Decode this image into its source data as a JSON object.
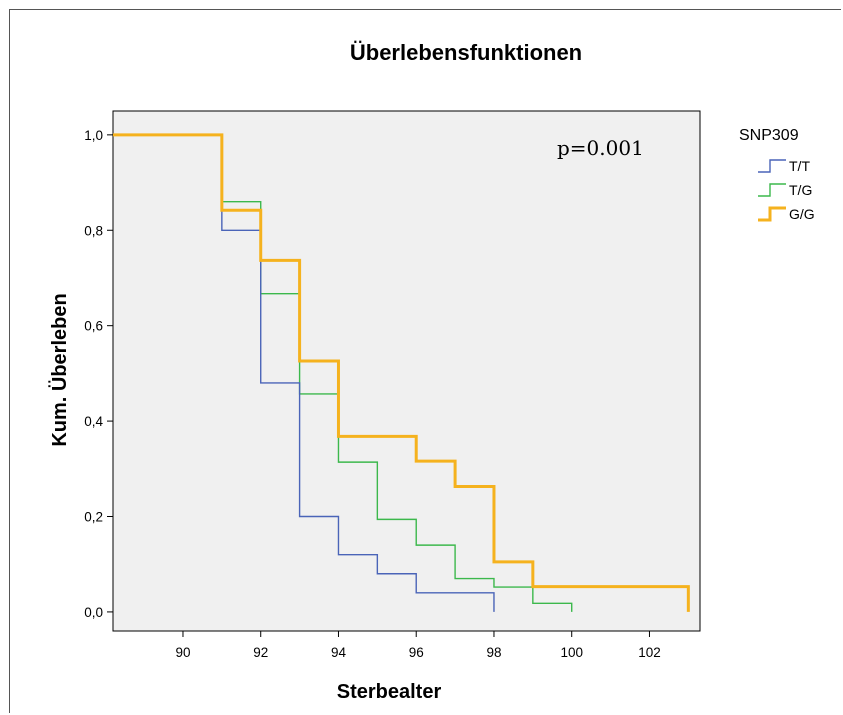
{
  "chart_data": {
    "type": "line",
    "subtype": "step",
    "title": "Überlebensfunktionen",
    "xlabel": "Sterbealter",
    "ylabel": "Kum. Überleben",
    "xlim": [
      88.2,
      103.3
    ],
    "ylim": [
      -0.04,
      1.05
    ],
    "xticks": [
      90,
      92,
      94,
      96,
      98,
      100,
      102
    ],
    "xtick_labels": [
      "90",
      "92",
      "94",
      "96",
      "98",
      "100",
      "102"
    ],
    "yticks": [
      0.0,
      0.2,
      0.4,
      0.6,
      0.8,
      1.0
    ],
    "ytick_labels": [
      "0,0",
      "0,2",
      "0,4",
      "0,6",
      "0,8",
      "1,0"
    ],
    "grid": false,
    "legend": {
      "title": "SNP309",
      "placement": "right"
    },
    "annotation": "p=0.001",
    "colors": {
      "plot_background": "#f0f0f0"
    },
    "series": [
      {
        "name": "T/T",
        "color": "#4a64b8",
        "stroke": 1.4,
        "points": [
          [
            88.2,
            1.0
          ],
          [
            91,
            0.8
          ],
          [
            92,
            0.48
          ],
          [
            93,
            0.2
          ],
          [
            94,
            0.12
          ],
          [
            95,
            0.08
          ],
          [
            96,
            0.04
          ],
          [
            98,
            0.0
          ]
        ]
      },
      {
        "name": "T/G",
        "color": "#3cb84c",
        "stroke": 1.4,
        "points": [
          [
            88.2,
            1.0
          ],
          [
            91,
            0.86
          ],
          [
            92,
            0.667
          ],
          [
            93,
            0.457
          ],
          [
            94,
            0.314
          ],
          [
            95,
            0.194
          ],
          [
            96,
            0.14
          ],
          [
            97,
            0.07
          ],
          [
            98,
            0.052
          ],
          [
            99,
            0.018
          ],
          [
            100,
            0.0
          ]
        ]
      },
      {
        "name": "G/G",
        "color": "#f5b21e",
        "stroke": 3,
        "points": [
          [
            88.2,
            1.0
          ],
          [
            91,
            0.842
          ],
          [
            92,
            0.737
          ],
          [
            93,
            0.526
          ],
          [
            94,
            0.368
          ],
          [
            96,
            0.316
          ],
          [
            97,
            0.263
          ],
          [
            98,
            0.105
          ],
          [
            99,
            0.053
          ],
          [
            103,
            0.0
          ]
        ]
      }
    ]
  }
}
